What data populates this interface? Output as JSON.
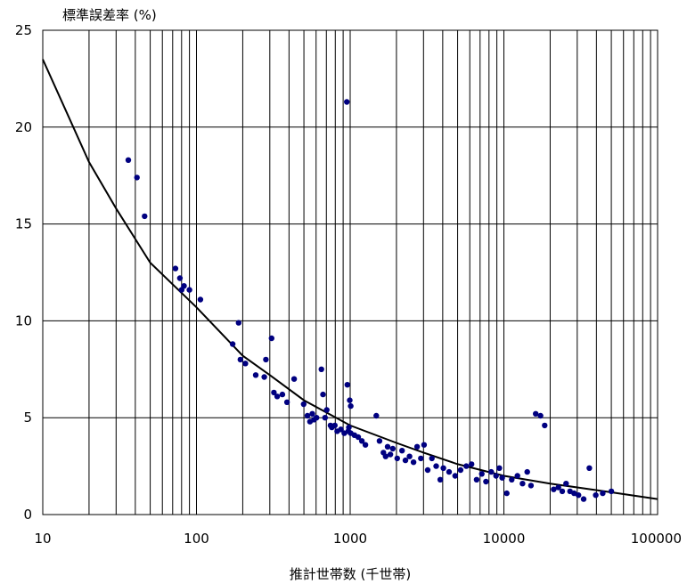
{
  "chart_data": {
    "type": "scatter",
    "title": "",
    "ylabel": "標準誤差率 (%)",
    "xlabel": "推計世帯数 (千世帯)",
    "x_scale": "log",
    "xlim": [
      10,
      100000
    ],
    "ylim": [
      0,
      25
    ],
    "grid": true,
    "x_ticks": [
      "10",
      "100",
      "1000",
      "10000",
      "100000"
    ],
    "y_ticks": [
      "0",
      "5",
      "10",
      "15",
      "20",
      "25"
    ],
    "colors": {
      "points": "#000080",
      "curve": "#000000",
      "grid": "#000000"
    },
    "fit_curve": {
      "x": [
        10,
        20,
        30,
        50,
        100,
        200,
        300,
        500,
        1000,
        2000,
        3000,
        5000,
        10000,
        20000,
        30000,
        50000,
        100000
      ],
      "y": [
        23.5,
        18.2,
        15.8,
        13.0,
        10.7,
        8.2,
        7.2,
        5.9,
        4.6,
        3.7,
        3.2,
        2.6,
        2.0,
        1.6,
        1.4,
        1.15,
        0.8
      ]
    },
    "series": [
      {
        "x": [
          36,
          41,
          46,
          73,
          78,
          80,
          83,
          90,
          106,
          172,
          188,
          193,
          208,
          243,
          276,
          283,
          308,
          319,
          335,
          362,
          388,
          432,
          498,
          527,
          548,
          567,
          582,
          604,
          650,
          666,
          686,
          704,
          745,
          760,
          795,
          823,
          870,
          916,
          958,
          973,
          994,
          1008,
          1066,
          1127,
          1191,
          1257,
          1478,
          1552,
          1646,
          1700,
          1751,
          1826,
          1892,
          2024,
          2174,
          2287,
          2432,
          2585,
          2726,
          2881,
          3026,
          3192,
          3402,
          3625,
          3853,
          4042,
          4400,
          4818,
          5226,
          5691,
          6156,
          6649,
          7177,
          7649,
          8270,
          8886,
          9340,
          9756,
          10432,
          11249,
          12248,
          13213,
          14178,
          15012,
          16096,
          17306,
          18440,
          21076,
          22647,
          23959,
          25377,
          26912,
          28632,
          30580,
          33032,
          35961,
          39618,
          43919,
          50026,
          950,
          980,
          1010
        ],
        "y": [
          18.3,
          17.4,
          15.4,
          12.7,
          12.2,
          11.6,
          11.8,
          11.6,
          11.1,
          8.8,
          9.9,
          8.0,
          7.8,
          7.2,
          7.1,
          8.0,
          9.1,
          6.3,
          6.1,
          6.2,
          5.8,
          7.0,
          5.7,
          5.1,
          4.8,
          5.2,
          4.9,
          5.0,
          7.5,
          6.2,
          5.0,
          5.4,
          4.6,
          4.5,
          4.6,
          4.3,
          4.4,
          4.2,
          6.7,
          4.3,
          5.9,
          5.6,
          4.1,
          4.0,
          3.8,
          3.6,
          5.1,
          3.8,
          3.2,
          3.0,
          3.5,
          3.1,
          3.4,
          2.9,
          3.3,
          2.8,
          3.0,
          2.7,
          3.5,
          2.9,
          3.6,
          2.3,
          2.9,
          2.5,
          1.8,
          2.4,
          2.2,
          2.0,
          2.3,
          2.5,
          2.6,
          1.8,
          2.1,
          1.7,
          2.2,
          2.0,
          2.4,
          1.9,
          1.1,
          1.8,
          2.0,
          1.6,
          2.2,
          1.5,
          5.2,
          5.1,
          4.6,
          1.3,
          1.4,
          1.2,
          1.6,
          1.2,
          1.1,
          1.0,
          0.8,
          2.4,
          1.0,
          1.1,
          1.2,
          21.3,
          4.5,
          4.2
        ],
        "values_note": ""
      }
    ]
  }
}
